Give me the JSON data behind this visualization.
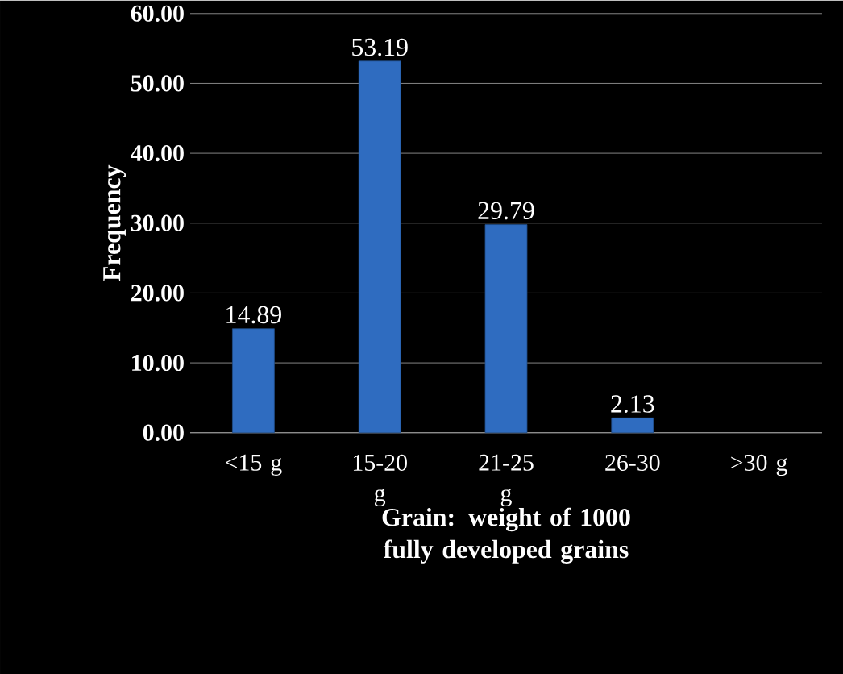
{
  "chart_data": {
    "type": "bar",
    "xlabel": "Grain: weight of 1000 fully developed grains",
    "ylabel": "Frequency",
    "categories": [
      "<15 g",
      "15-20 g",
      "21-25 g",
      "26-30",
      ">30 g"
    ],
    "values": [
      14.89,
      53.19,
      29.79,
      2.13,
      null
    ],
    "color": "#2f6cc0",
    "data_labels": true,
    "ylim": [
      0,
      60
    ],
    "yticks": [
      {
        "value": 0,
        "label": "0.00"
      },
      {
        "value": 10,
        "label": "10.00"
      },
      {
        "value": 20,
        "label": "20.00"
      },
      {
        "value": 30,
        "label": "30.00"
      },
      {
        "value": 40,
        "label": "40.00"
      },
      {
        "value": 50,
        "label": "50.00"
      },
      {
        "value": 60,
        "label": "60.00"
      }
    ],
    "grid": "y"
  }
}
